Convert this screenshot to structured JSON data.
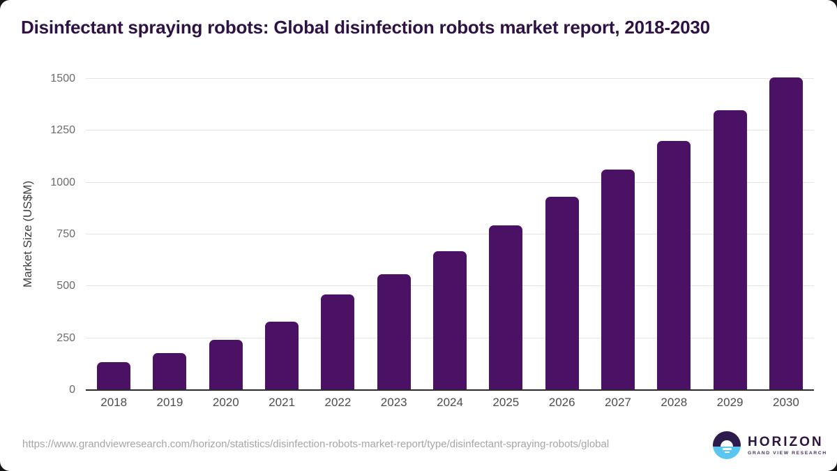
{
  "title": "Disinfectant spraying robots: Global disinfection robots market report, 2018-2030",
  "chart_data": {
    "type": "bar",
    "title": "Disinfectant spraying robots: Global disinfection robots market report, 2018-2030",
    "categories": [
      "2018",
      "2019",
      "2020",
      "2021",
      "2022",
      "2023",
      "2024",
      "2025",
      "2026",
      "2027",
      "2028",
      "2029",
      "2030"
    ],
    "values": [
      135,
      177,
      242,
      328,
      462,
      559,
      668,
      794,
      933,
      1062,
      1200,
      1349,
      1506
    ],
    "xlabel": "",
    "ylabel": "Market Size (US$M)",
    "ylim": [
      0,
      1500
    ],
    "yticks": [
      0,
      250,
      500,
      750,
      1000,
      1250,
      1500
    ],
    "grid": true,
    "legend": "none",
    "bar_color": "#4a1164"
  },
  "footer": {
    "source_url": "https://www.grandviewresearch.com/horizon/statistics/disinfection-robots-market-report/type/disinfectant-spraying-robots/global",
    "logo": {
      "name": "HORIZON",
      "tagline": "GRAND VIEW RESEARCH"
    }
  },
  "colors": {
    "bar": "#4a1164",
    "title_text": "#2e1244",
    "axis_line": "#2b2b2b",
    "gridline": "#e4e4e4",
    "tick_text": "#6b6b6b",
    "url_text": "#a5a5a5",
    "logo_purple": "#2d1b4e",
    "logo_blue": "#5cc6f0"
  }
}
